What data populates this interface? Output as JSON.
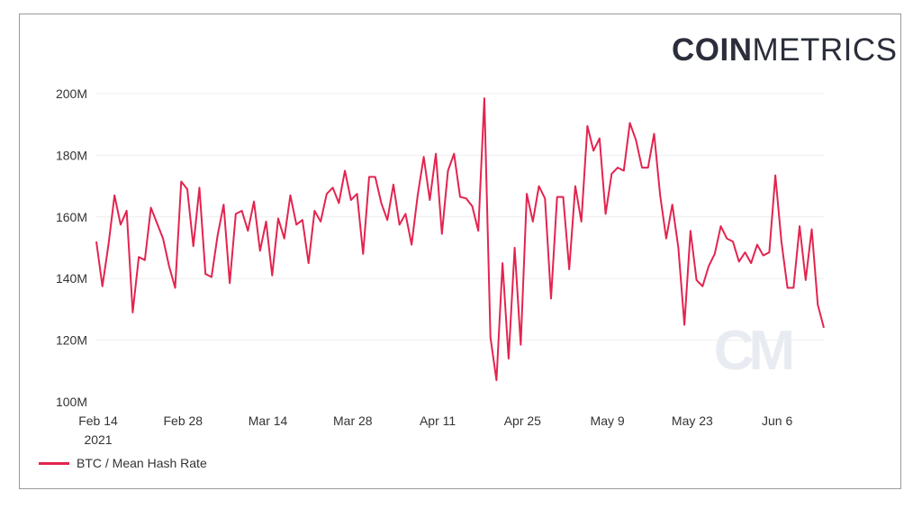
{
  "logo": {
    "bold": "COIN",
    "light": "METRICS"
  },
  "watermark": "CM",
  "colors": {
    "series": "#e3244f",
    "grid": "#eeeeee",
    "axis": "#333333"
  },
  "chart_data": {
    "type": "line",
    "title": "",
    "xlabel": "",
    "ylabel": "",
    "ylim": [
      100000000,
      200000000
    ],
    "y_ticks": [
      {
        "value": 100000000,
        "label": "100M"
      },
      {
        "value": 120000000,
        "label": "120M"
      },
      {
        "value": 140000000,
        "label": "140M"
      },
      {
        "value": 160000000,
        "label": "160M"
      },
      {
        "value": 180000000,
        "label": "180M"
      },
      {
        "value": 200000000,
        "label": "200M"
      }
    ],
    "x_ticks": [
      {
        "day": 14,
        "label": "Feb 14",
        "sublabel": "2021"
      },
      {
        "day": 28,
        "label": "Feb 28"
      },
      {
        "day": 42,
        "label": "Mar 14"
      },
      {
        "day": 56,
        "label": "Mar 28"
      },
      {
        "day": 70,
        "label": "Apr 11"
      },
      {
        "day": 84,
        "label": "Apr 25"
      },
      {
        "day": 98,
        "label": "May 9"
      },
      {
        "day": 112,
        "label": "May 23"
      },
      {
        "day": 126,
        "label": "Jun 6"
      }
    ],
    "x_start_day": 14,
    "series": [
      {
        "name": "BTC / Mean Hash Rate",
        "values": [
          152,
          137.5,
          151,
          167,
          157.5,
          162,
          129,
          147,
          146,
          163,
          158,
          153,
          144,
          137,
          171.5,
          169,
          150.5,
          169.5,
          141.5,
          140.5,
          154,
          164,
          138.5,
          161,
          162,
          155.5,
          165,
          149,
          158.5,
          141,
          159.5,
          153,
          167,
          157.5,
          159,
          145,
          162,
          158.5,
          167.5,
          169.5,
          164.5,
          175,
          165.5,
          167.5,
          148,
          173,
          173,
          164.5,
          159,
          170.5,
          157.5,
          161,
          151,
          167,
          179.5,
          165.5,
          180.5,
          154.5,
          175,
          180.5,
          166.5,
          166,
          163.5,
          155.5,
          198.5,
          121,
          107,
          145,
          114,
          150,
          118.5,
          167.5,
          158.5,
          170,
          166,
          133.5,
          166.5,
          166.5,
          143,
          170,
          158.5,
          189.5,
          181.5,
          185.5,
          161,
          174,
          176,
          175,
          190.5,
          185,
          176,
          176,
          187,
          167,
          153,
          164,
          150,
          125,
          155.5,
          139.5,
          137.5,
          144,
          148,
          157,
          153,
          152,
          145.5,
          148.5,
          145,
          151,
          147.5,
          148.5,
          173.5,
          152,
          137,
          137,
          157,
          139.5,
          156,
          131.5,
          124
        ]
      }
    ],
    "legend": "bottom-left"
  }
}
